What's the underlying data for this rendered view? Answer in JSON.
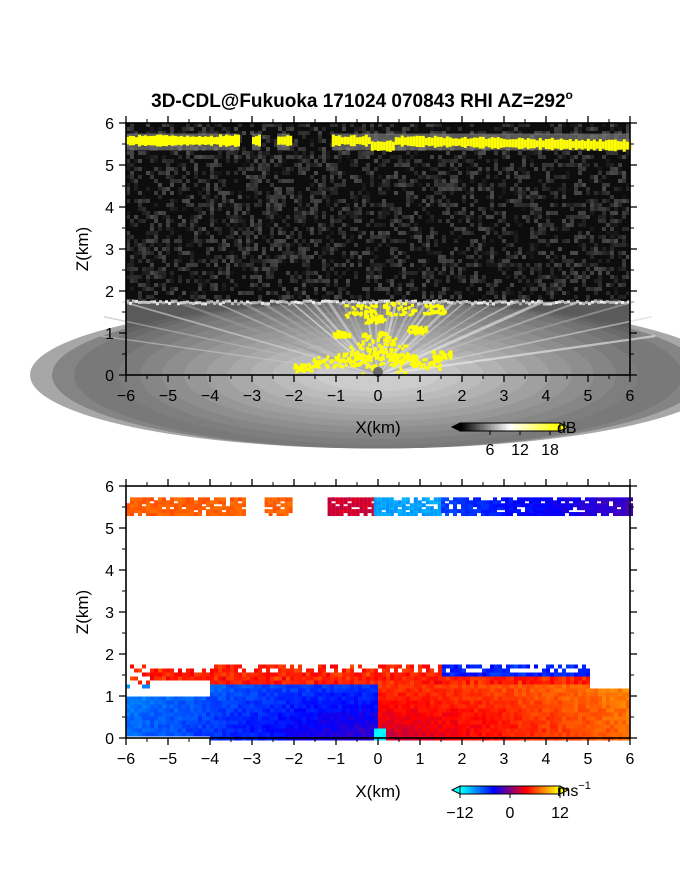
{
  "figure": {
    "title": "3D-CDL@Fukuoka 171024 070843 RHI AZ=292",
    "title_degree_symbol": "o"
  },
  "chart_data": [
    {
      "type": "heatmap",
      "name": "backscatter",
      "xlabel": "X(km)",
      "ylabel": "Z(km)",
      "xlim": [
        -6,
        6
      ],
      "ylim": [
        0,
        6
      ],
      "xticks": [
        "−6",
        "−5",
        "−4",
        "−3",
        "−2",
        "−1",
        "0",
        "1",
        "2",
        "3",
        "4",
        "5",
        "6"
      ],
      "yticks": [
        "0",
        "1",
        "2",
        "3",
        "4",
        "5",
        "6"
      ],
      "colorbar": {
        "unit": "dB",
        "tick_labels": [
          "6",
          "12",
          "18"
        ],
        "colors": [
          "#000000",
          "#ffffff",
          "#ffff00"
        ],
        "range": [
          0,
          20
        ]
      },
      "features": {
        "boundary_layer_top_km": 1.75,
        "cloud_layer_km": [
          5.35,
          5.75
        ]
      }
    },
    {
      "type": "heatmap",
      "name": "doppler_velocity",
      "xlabel": "X(km)",
      "ylabel": "Z(km)",
      "xlim": [
        -6,
        6
      ],
      "ylim": [
        0,
        6
      ],
      "xticks": [
        "−6",
        "−5",
        "−4",
        "−3",
        "−2",
        "−1",
        "0",
        "1",
        "2",
        "3",
        "4",
        "5",
        "6"
      ],
      "yticks": [
        "0",
        "1",
        "2",
        "3",
        "4",
        "5",
        "6"
      ],
      "colorbar": {
        "unit": "ms",
        "unit_exponent": "−1",
        "tick_labels": [
          "−12",
          "0",
          "12"
        ],
        "colors": [
          "#00ffff",
          "#0000ff",
          "#ff0000",
          "#ffff00"
        ],
        "range": [
          -12,
          12
        ]
      },
      "features": {
        "boundary_layer_top_km": 1.75,
        "cloud_layer_km": [
          5.35,
          5.75
        ]
      }
    }
  ]
}
